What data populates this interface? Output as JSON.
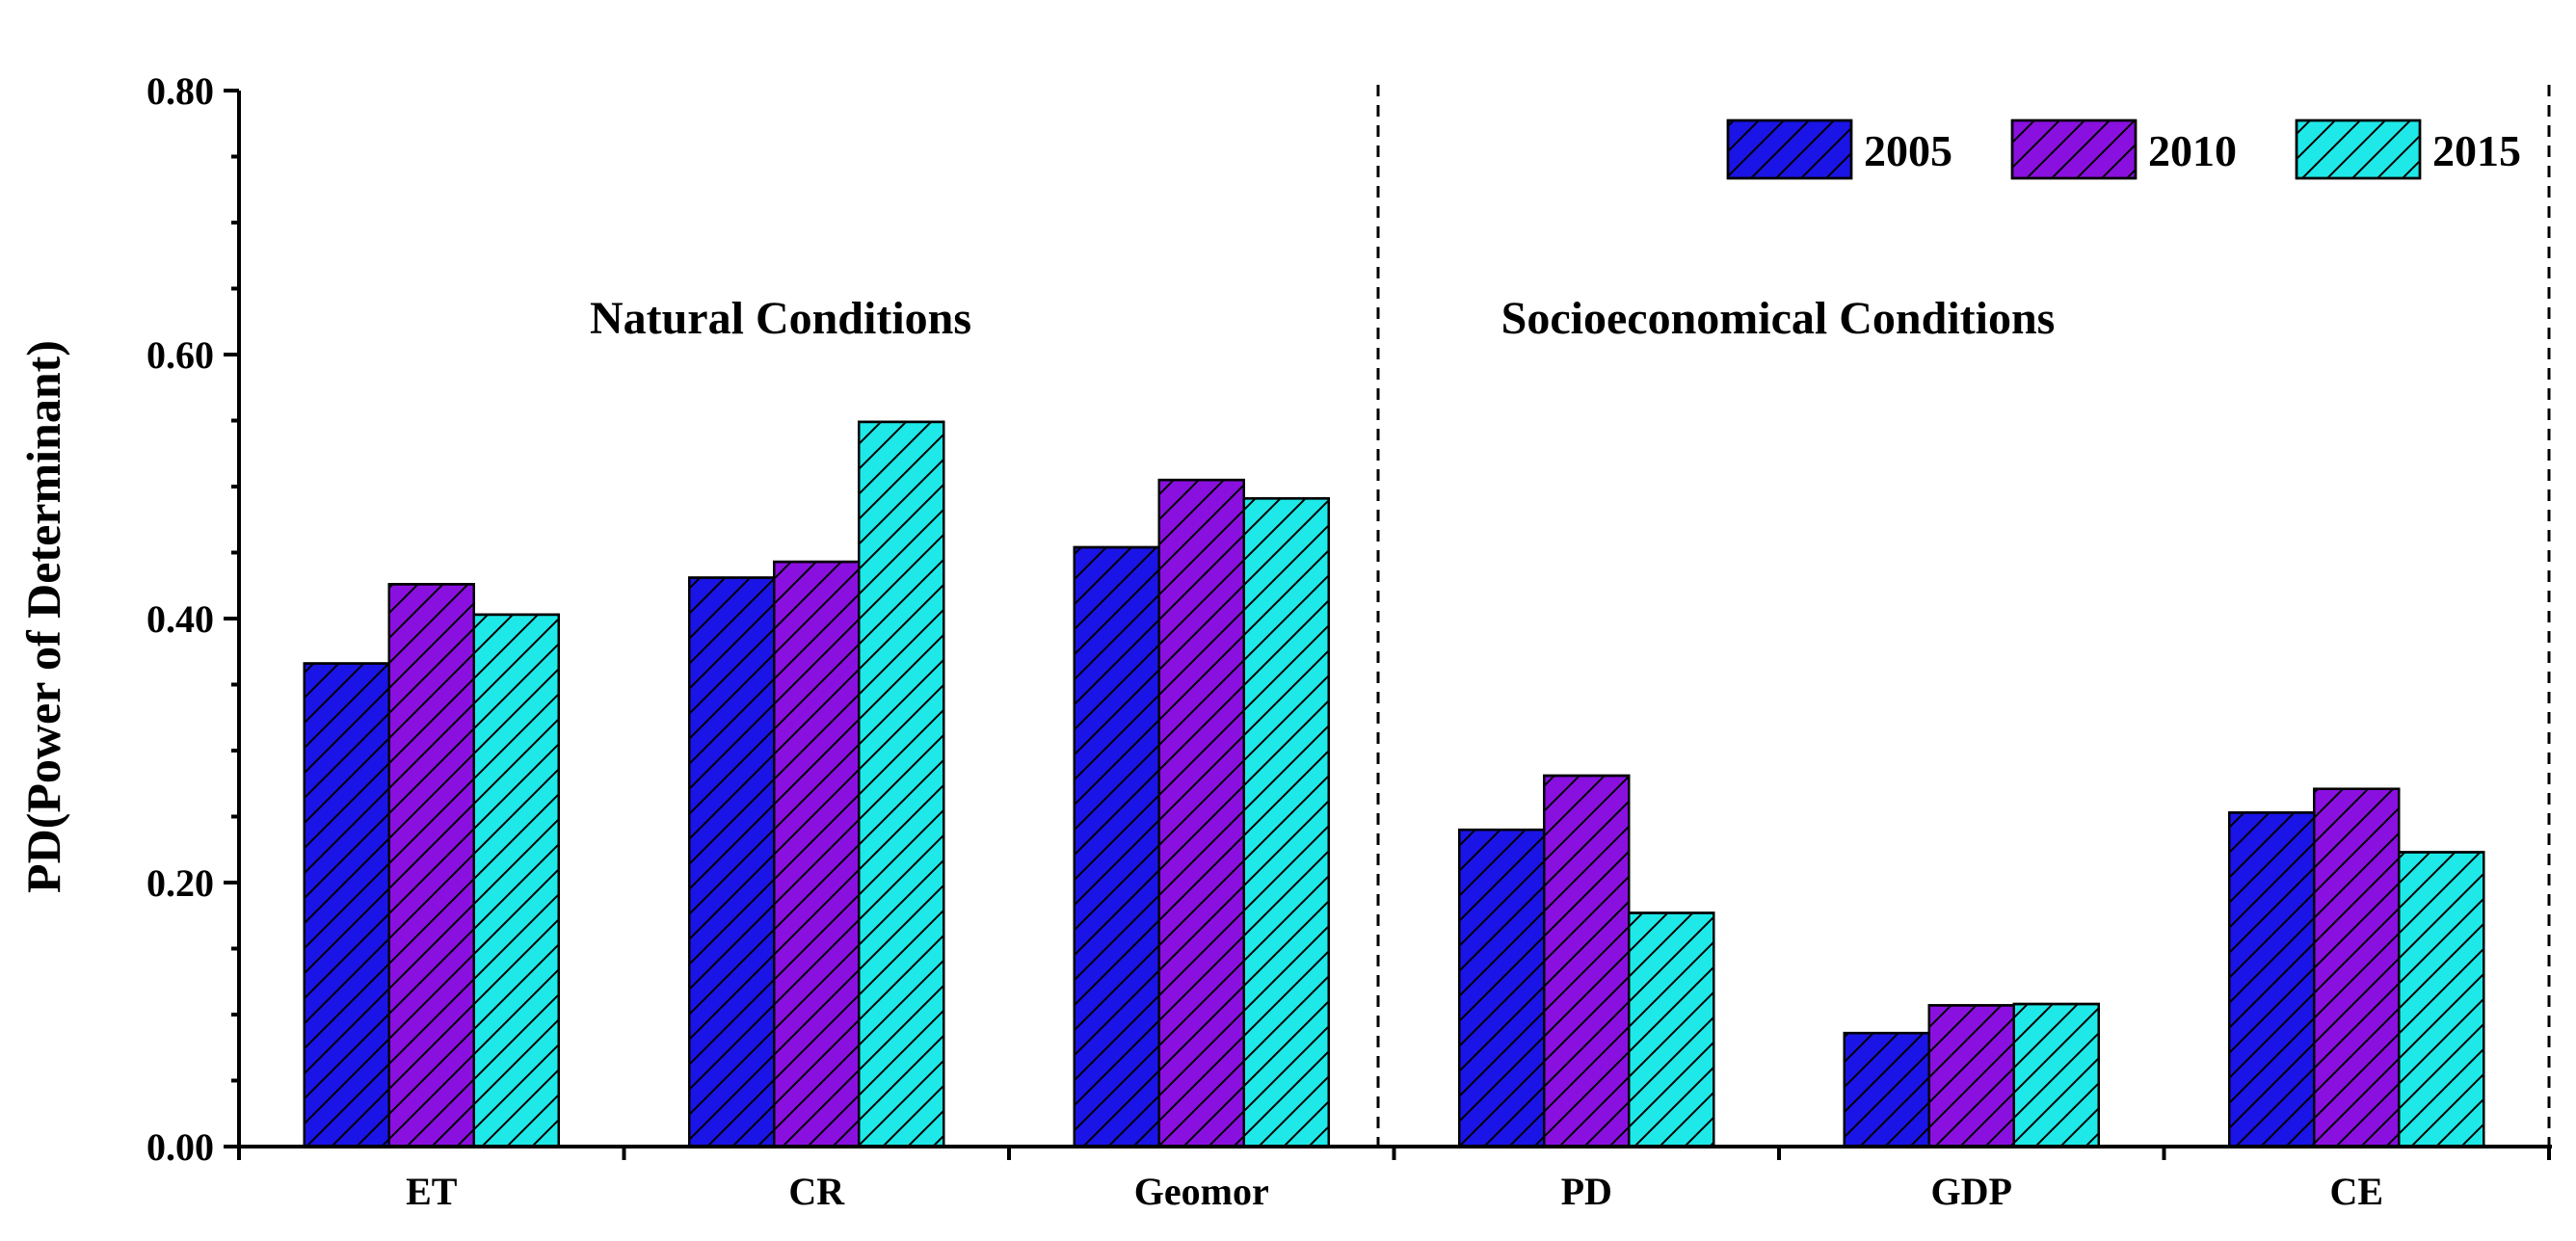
{
  "colors": {
    "s2005": "#1a14e6",
    "s2010": "#8a10e0",
    "s2015": "#1fe8e8",
    "hatch": "#000000",
    "axis": "#000000"
  },
  "chart_data": {
    "type": "bar",
    "ylabel": "PD(Power of Determinant)",
    "xlabel": "",
    "ylim": [
      0,
      0.8
    ],
    "yticks": [
      "0.00",
      "0.20",
      "0.40",
      "0.60",
      "0.80"
    ],
    "categories": [
      "ET",
      "CR",
      "Geomor",
      "PD",
      "GDP",
      "CE"
    ],
    "series": [
      {
        "name": "2005",
        "values": [
          0.366,
          0.431,
          0.454,
          0.24,
          0.086,
          0.253
        ]
      },
      {
        "name": "2010",
        "values": [
          0.426,
          0.443,
          0.505,
          0.281,
          0.107,
          0.271
        ]
      },
      {
        "name": "2015",
        "values": [
          0.403,
          0.549,
          0.491,
          0.177,
          0.108,
          0.223
        ]
      }
    ],
    "groups": [
      {
        "title": "Natural Conditions",
        "categories": [
          "ET",
          "CR",
          "Geomor"
        ]
      },
      {
        "title": "Socioeconomical Conditions",
        "categories": [
          "PD",
          "GDP",
          "CE"
        ]
      }
    ],
    "legend": {
      "position": "top-right",
      "labels": [
        "2005",
        "2010",
        "2015"
      ]
    },
    "grid": false
  }
}
